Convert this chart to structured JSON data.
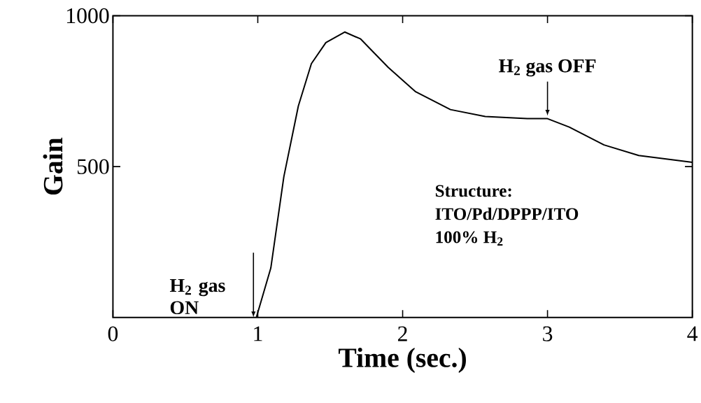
{
  "chart_data": {
    "type": "line",
    "xlabel": "Time (sec.)",
    "ylabel": "Gain",
    "color": "#000000",
    "x": [
      0.99,
      1.09,
      1.18,
      1.28,
      1.37,
      1.47,
      1.6,
      1.71,
      1.9,
      2.09,
      2.33,
      2.57,
      2.86,
      3.0,
      3.15,
      3.39,
      3.63,
      4.0
    ],
    "values": [
      0,
      164,
      467,
      701,
      841,
      911,
      946,
      923,
      829,
      748,
      689,
      666,
      659,
      659,
      631,
      572,
      537,
      514
    ],
    "xlim": [
      0,
      4
    ],
    "ylim": [
      0,
      1000
    ],
    "xticks": [
      0,
      1,
      2,
      3,
      4
    ],
    "yticks": [
      500,
      1000
    ],
    "grid": false,
    "marker": "none",
    "line_style": "solid",
    "annotations": [
      {
        "text": "H$_{2}$ gas ON",
        "x": 0.97,
        "y": 0
      },
      {
        "text": "H$_{2}$ gas OFF",
        "x": 3,
        "y": 659
      },
      "Structure:",
      "ITO/Pd/DPPP/ITO",
      "100% H$_{2}$"
    ]
  }
}
